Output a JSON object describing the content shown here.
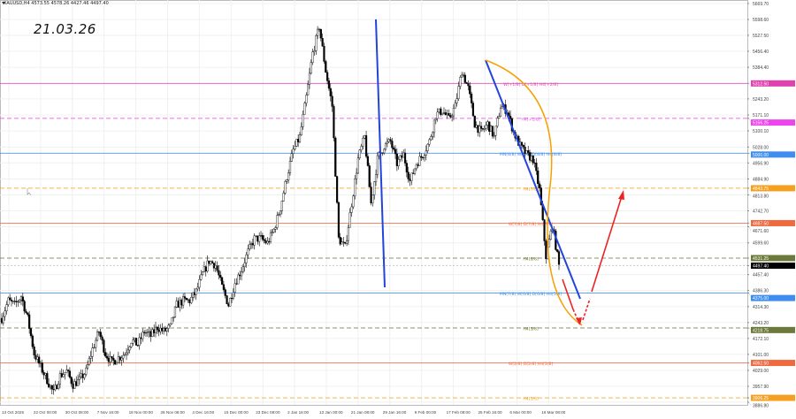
{
  "header": {
    "symbol_info": "XAUUSD,H4  4573.55 4578.26 4427.46 4497.40"
  },
  "annotation_date": "21.03.26",
  "chart_data": {
    "type": "candlestick",
    "symbol": "XAUUSD",
    "timeframe": "H4",
    "ylim": [
      3886.8,
      5669.7
    ],
    "grid": true,
    "price_ticks": [
      "5669.70",
      "5598.60",
      "5527.50",
      "5456.40",
      "5384.40",
      "5243.20",
      "5171.10",
      "5100.10",
      "5028.00",
      "4956.90",
      "4884.90",
      "4813.80",
      "4742.70",
      "4671.60",
      "4599.60",
      "4457.40",
      "4386.30",
      "4314.30",
      "4243.20",
      "4172.10",
      "4101.00",
      "4029.00",
      "3957.90",
      "3886.80"
    ],
    "time_ticks": [
      "13 Oct 2025",
      "22 Oct 00:00",
      "30 Oct 08:00",
      "7 Nov 16:00",
      "18 Nov 00:00",
      "26 Nov 08:00",
      "4 Dec 16:00",
      "15 Dec 00:00",
      "23 Dec 08:00",
      "2 Jan 16:00",
      "13 Jan 00:00",
      "21 Jan 08:00",
      "29 Jan 16:00",
      "9 Feb 00:00",
      "17 Feb 08:00",
      "25 Feb 16:00",
      "6 Mar 00:00",
      "16 Mar 08:00"
    ],
    "close_path": [
      4262,
      4341,
      4322,
      4361,
      4262,
      4104,
      4045,
      3986,
      3927,
      4006,
      4025,
      3966,
      3986,
      4025,
      4124,
      4203,
      4104,
      4065,
      4085,
      4104,
      4164,
      4144,
      4203,
      4183,
      4223,
      4203,
      4223,
      4321,
      4341,
      4341,
      4381,
      4460,
      4519,
      4500,
      4401,
      4322,
      4421,
      4480,
      4559,
      4618,
      4618,
      4598,
      4658,
      4757,
      4895,
      5014,
      5073,
      5251,
      5448,
      5567,
      5369,
      5211,
      4618,
      4579,
      4776,
      4974,
      5073,
      4776,
      4974,
      5033,
      5053,
      4954,
      4994,
      4875,
      4954,
      4994,
      5053,
      5172,
      5191,
      5152,
      5211,
      5369,
      5291,
      5132,
      5093,
      5132,
      5073,
      5211,
      5191,
      5093,
      5033,
      4994,
      4974,
      4836,
      4539,
      4678,
      4497
    ],
    "current_price": {
      "value": "4497.40",
      "color": "#000000"
    },
    "levels": [
      {
        "price": 5312.5,
        "value": "5312.50",
        "label": "W[+1/8] D[+1/8] H4[+2/8]",
        "color": "#e040b0",
        "dash": false
      },
      {
        "price": 5156.25,
        "value": "5156.25",
        "label": "H4[+1/8]",
        "color": "#ee44ee",
        "dash": true
      },
      {
        "price": 5000.0,
        "value": "5000.00",
        "label": "MN[8/8] W[8/8] D[8/8] H4[8/8]",
        "color": "#3d8ef0",
        "dash": false
      },
      {
        "price": 4843.75,
        "value": "4843.75",
        "label": "H4[7/8]",
        "color": "#f5a020",
        "dash": true
      },
      {
        "price": 4687.5,
        "value": "4687.50",
        "label": "W[7/8] D[7/8] H4[7/8]",
        "color": "#f06a40",
        "dash": false
      },
      {
        "price": 4531.25,
        "value": "4531.25",
        "label": "H4[6/8]",
        "color": "#6b7a3a",
        "dash": true
      },
      {
        "price": 4375.0,
        "value": "4375.00",
        "label": "MN[7/8] W[6/8] D[6/8] H4[5/8]",
        "color": "#3d8ef0",
        "dash": false
      },
      {
        "price": 4218.75,
        "value": "4218.75",
        "label": "H4[3/8]",
        "color": "#6b7a3a",
        "dash": true
      },
      {
        "price": 4062.5,
        "value": "4062.50",
        "label": "W[2/8] D[2/8] H4[2/8]",
        "color": "#f06a40",
        "dash": false
      },
      {
        "price": 3906.25,
        "value": "3906.25",
        "label": "H4[1/8]",
        "color": "#f5a020",
        "dash": true
      }
    ],
    "drawings": {
      "trendline_color": "#2244dd",
      "arc_color": "#f5a000",
      "forecast_color": "#ee2222"
    }
  }
}
